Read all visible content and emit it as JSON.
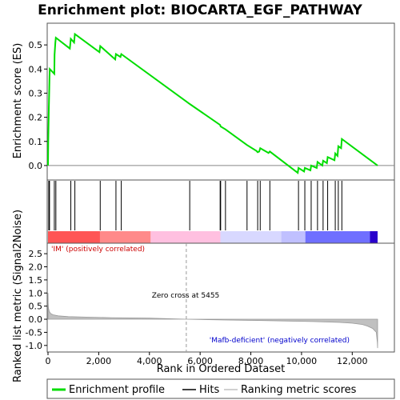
{
  "chart_data": {
    "title": "Enrichment plot: BIOCARTA_EGF_PATHWAY",
    "panels": [
      {
        "type": "line",
        "name": "enrichment",
        "ylabel": "Enrichment score (ES)",
        "ylim": [
          -0.06,
          0.59
        ],
        "yticks": [
          0.0,
          0.1,
          0.2,
          0.3,
          0.4,
          0.5
        ],
        "ytick_labels": [
          "0.0",
          "0.1",
          "0.2",
          "0.3",
          "0.4",
          "0.5"
        ],
        "zero_line": true,
        "series": [
          {
            "name": "Enrichment profile",
            "color": "#00dd00",
            "x": [
              0,
              10,
              30,
              50,
              60,
              70,
              250,
              260,
              290,
              310,
              860,
              900,
              1030,
              1060,
              2030,
              2060,
              2650,
              2680,
              2860,
              2890,
              5590,
              6790,
              6800,
              6810,
              7000,
              7850,
              8230,
              8270,
              8330,
              8370,
              8700,
              8750,
              9850,
              9880,
              10100,
              10130,
              10350,
              10380,
              10600,
              10630,
              10820,
              10850,
              11000,
              11030,
              11300,
              11330,
              11420,
              11450,
              11560,
              11590,
              13000
            ],
            "y": [
              0.0,
              0.1,
              0.23,
              0.32,
              0.37,
              0.4,
              0.38,
              0.46,
              0.51,
              0.53,
              0.485,
              0.525,
              0.51,
              0.545,
              0.47,
              0.495,
              0.44,
              0.462,
              0.45,
              0.462,
              0.255,
              0.168,
              0.165,
              0.162,
              0.15,
              0.085,
              0.06,
              0.055,
              0.058,
              0.072,
              0.052,
              0.058,
              -0.03,
              -0.01,
              -0.025,
              -0.01,
              -0.02,
              0.0,
              -0.01,
              0.015,
              0.0,
              0.02,
              0.01,
              0.035,
              0.022,
              0.05,
              0.04,
              0.08,
              0.072,
              0.11,
              0.0
            ]
          }
        ]
      },
      {
        "type": "hits",
        "name": "hits",
        "hit_positions": [
          30,
          60,
          250,
          310,
          900,
          1060,
          2060,
          2680,
          2890,
          5590,
          6790,
          6810,
          7000,
          7850,
          8270,
          8370,
          8750,
          9880,
          10130,
          10380,
          10630,
          10850,
          11030,
          11330,
          11450,
          11590
        ],
        "gradient": [
          {
            "x_start": 0,
            "x_end": 2050,
            "color": "#ff5555"
          },
          {
            "x_start": 2050,
            "x_end": 4050,
            "color": "#ff8a8a"
          },
          {
            "x_start": 4050,
            "x_end": 6800,
            "color": "#ffc0e0"
          },
          {
            "x_start": 6800,
            "x_end": 9200,
            "color": "#d8d8ff"
          },
          {
            "x_start": 9200,
            "x_end": 10150,
            "color": "#c0c0ff"
          },
          {
            "x_start": 10150,
            "x_end": 12700,
            "color": "#6f6fff"
          },
          {
            "x_start": 12700,
            "x_end": 13000,
            "color": "#2a00cc"
          }
        ]
      },
      {
        "type": "area",
        "name": "ranking",
        "ylabel": "Ranked list metric (Signal2Noise)",
        "xlabel": "Rank in Ordered Dataset",
        "ylim": [
          -1.25,
          2.9
        ],
        "yticks": [
          -1.0,
          -0.5,
          0.0,
          0.5,
          1.0,
          1.5,
          2.0,
          2.5
        ],
        "ytick_labels": [
          "-1.0",
          "-0.5",
          "0.0",
          "0.5",
          "1.0",
          "1.5",
          "2.0",
          "2.5"
        ],
        "xticks": [
          0,
          2000,
          4000,
          6000,
          8000,
          10000,
          12000
        ],
        "xtick_labels": [
          "0",
          "2,000",
          "4,000",
          "6,000",
          "8,000",
          "10,000",
          "12,000"
        ],
        "xlim": [
          0,
          13000
        ],
        "zero_cross": 5455,
        "series": [
          {
            "name": "Ranking metric scores",
            "color": "#c0c0c0",
            "x": [
              0,
              5,
              20,
              50,
              100,
              200,
              400,
              800,
              1500,
              2500,
              4000,
              5455,
              7000,
              8500,
              9500,
              10500,
              11500,
              12000,
              12400,
              12600,
              12800,
              12950,
              12990,
              13000
            ],
            "y": [
              1.0,
              0.6,
              0.42,
              0.3,
              0.22,
              0.17,
              0.13,
              0.1,
              0.08,
              0.06,
              0.04,
              0.0,
              -0.03,
              -0.05,
              -0.07,
              -0.09,
              -0.12,
              -0.15,
              -0.2,
              -0.26,
              -0.35,
              -0.5,
              -0.9,
              -1.1
            ]
          }
        ],
        "annotations": [
          {
            "text": "'IM' (positively correlated)",
            "color": "#cc0000"
          },
          {
            "text": "Zero cross at 5455",
            "color": "#000000"
          },
          {
            "text": "'Mafb-deficient' (negatively correlated)",
            "color": "#0000cc"
          }
        ]
      }
    ],
    "legend": {
      "placement": "bottom",
      "entries": [
        {
          "label": "Enrichment profile",
          "color": "#00dd00",
          "style": "line"
        },
        {
          "label": "Hits",
          "color": "#000000",
          "style": "line"
        },
        {
          "label": "Ranking metric scores",
          "color": "#c0c0c0",
          "style": "line"
        }
      ]
    }
  }
}
